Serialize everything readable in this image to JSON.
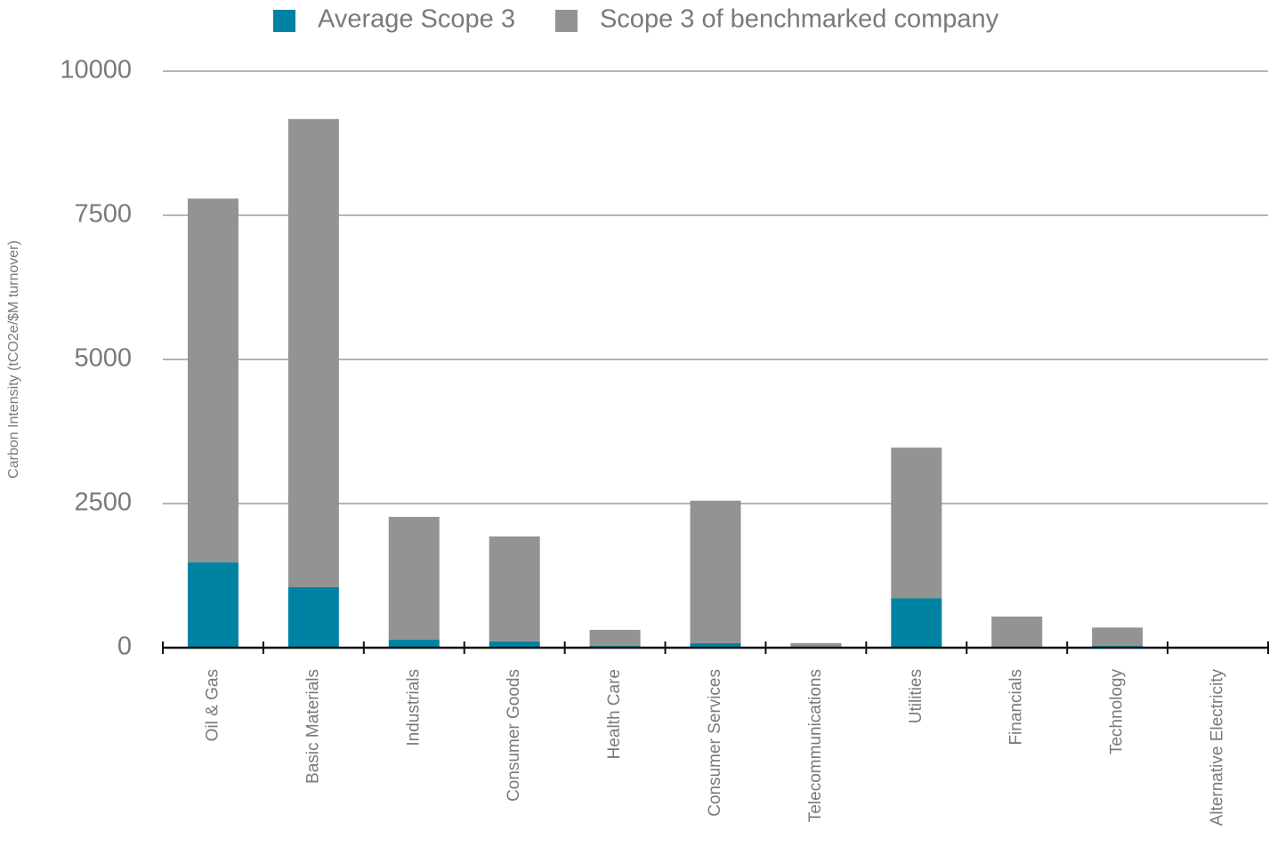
{
  "chart_data": {
    "type": "stacked_bar",
    "y_axis_label": "Carbon Intensity (tCO2e/$M turnover)",
    "categories": [
      "Oil & Gas",
      "Basic Materials",
      "Industrials",
      "Consumer Goods",
      "Health Care",
      "Consumer Services",
      "Telecommunications",
      "Utilities",
      "Financials",
      "Technology",
      "Alternative Electricity"
    ],
    "series": [
      {
        "name": "Average Scope 3",
        "color": "#0083a3",
        "values": [
          1480,
          1050,
          140,
          110,
          30,
          80,
          15,
          860,
          20,
          30,
          5
        ]
      },
      {
        "name": "Scope 3 of benchmarked company",
        "color": "#939393",
        "values": [
          6310,
          8120,
          2130,
          1820,
          280,
          2470,
          65,
          2610,
          520,
          320,
          5
        ]
      }
    ],
    "ylim": [
      0,
      10000
    ],
    "yticks": [
      0,
      2500,
      5000,
      7500,
      10000
    ],
    "grid": true
  }
}
